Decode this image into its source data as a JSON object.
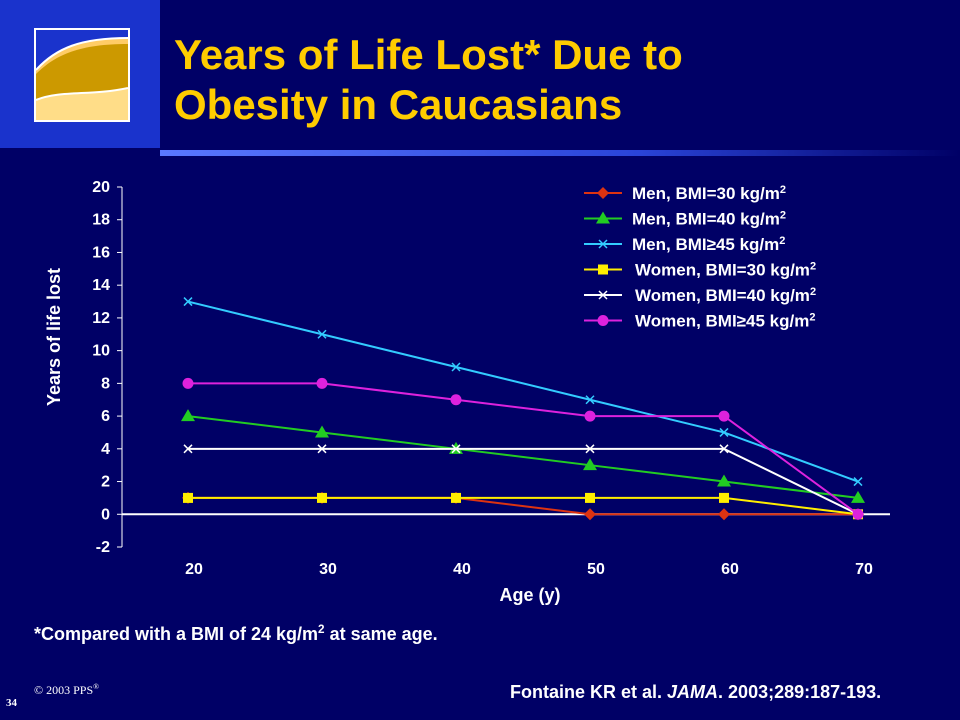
{
  "slide": {
    "title_line1": "Years of Life Lost* Due to",
    "title_line2": "Obesity in Caucasians",
    "footnote_pre": "*Compared with a BMI of 24 kg/m",
    "footnote_sup": "2",
    "footnote_post": " at same age.",
    "copyright": "© 2003 PPS",
    "copyright_mark": "®",
    "slide_number": "34",
    "citation_pre": "Fontaine KR et al. ",
    "citation_journal": "JAMA",
    "citation_post": ". 2003;289:187-193."
  },
  "colors": {
    "background": "#000066",
    "title": "#ffcc00",
    "men30": "#dd3311",
    "men40": "#22cc22",
    "men45": "#33ccff",
    "women30": "#ffee00",
    "women40": "#ffffff",
    "women45": "#dd22dd"
  },
  "chart_data": {
    "type": "line",
    "xlabel": "Age (y)",
    "ylabel": "Years of life lost",
    "x": [
      20,
      30,
      40,
      50,
      60,
      70
    ],
    "x_ticks": [
      "20",
      "30",
      "40",
      "50",
      "60",
      "70"
    ],
    "ylim": [
      -2,
      20
    ],
    "y_ticks": [
      "-2",
      "0",
      "2",
      "4",
      "6",
      "8",
      "10",
      "12",
      "14",
      "16",
      "18",
      "20"
    ],
    "grid": false,
    "legend_position": "top-right",
    "series": [
      {
        "name": "Men, BMI=30 kg/m",
        "sup": "2",
        "marker": "diamond",
        "color": "#dd3311",
        "values": [
          1,
          1,
          1,
          0,
          0,
          0
        ]
      },
      {
        "name": "Men, BMI=40 kg/m",
        "sup": "2",
        "marker": "triangle",
        "color": "#22cc22",
        "values": [
          6,
          5,
          4,
          3,
          2,
          1
        ]
      },
      {
        "name": "Men, BMI≥45 kg/m",
        "sup": "2",
        "marker": "x",
        "color": "#33ccff",
        "values": [
          13,
          11,
          9,
          7,
          5,
          2
        ]
      },
      {
        "name": "Women, BMI=30 kg/m",
        "sup": "2",
        "marker": "square",
        "color": "#ffee00",
        "values": [
          1,
          1,
          1,
          1,
          1,
          0
        ]
      },
      {
        "name": "Women, BMI=40 kg/m",
        "sup": "2",
        "marker": "x",
        "color": "#ffffff",
        "values": [
          4,
          4,
          4,
          4,
          4,
          0
        ]
      },
      {
        "name": "Women, BMI≥45 kg/m",
        "sup": "2",
        "marker": "circle",
        "color": "#dd22dd",
        "values": [
          8,
          8,
          7,
          6,
          6,
          0
        ]
      }
    ]
  }
}
